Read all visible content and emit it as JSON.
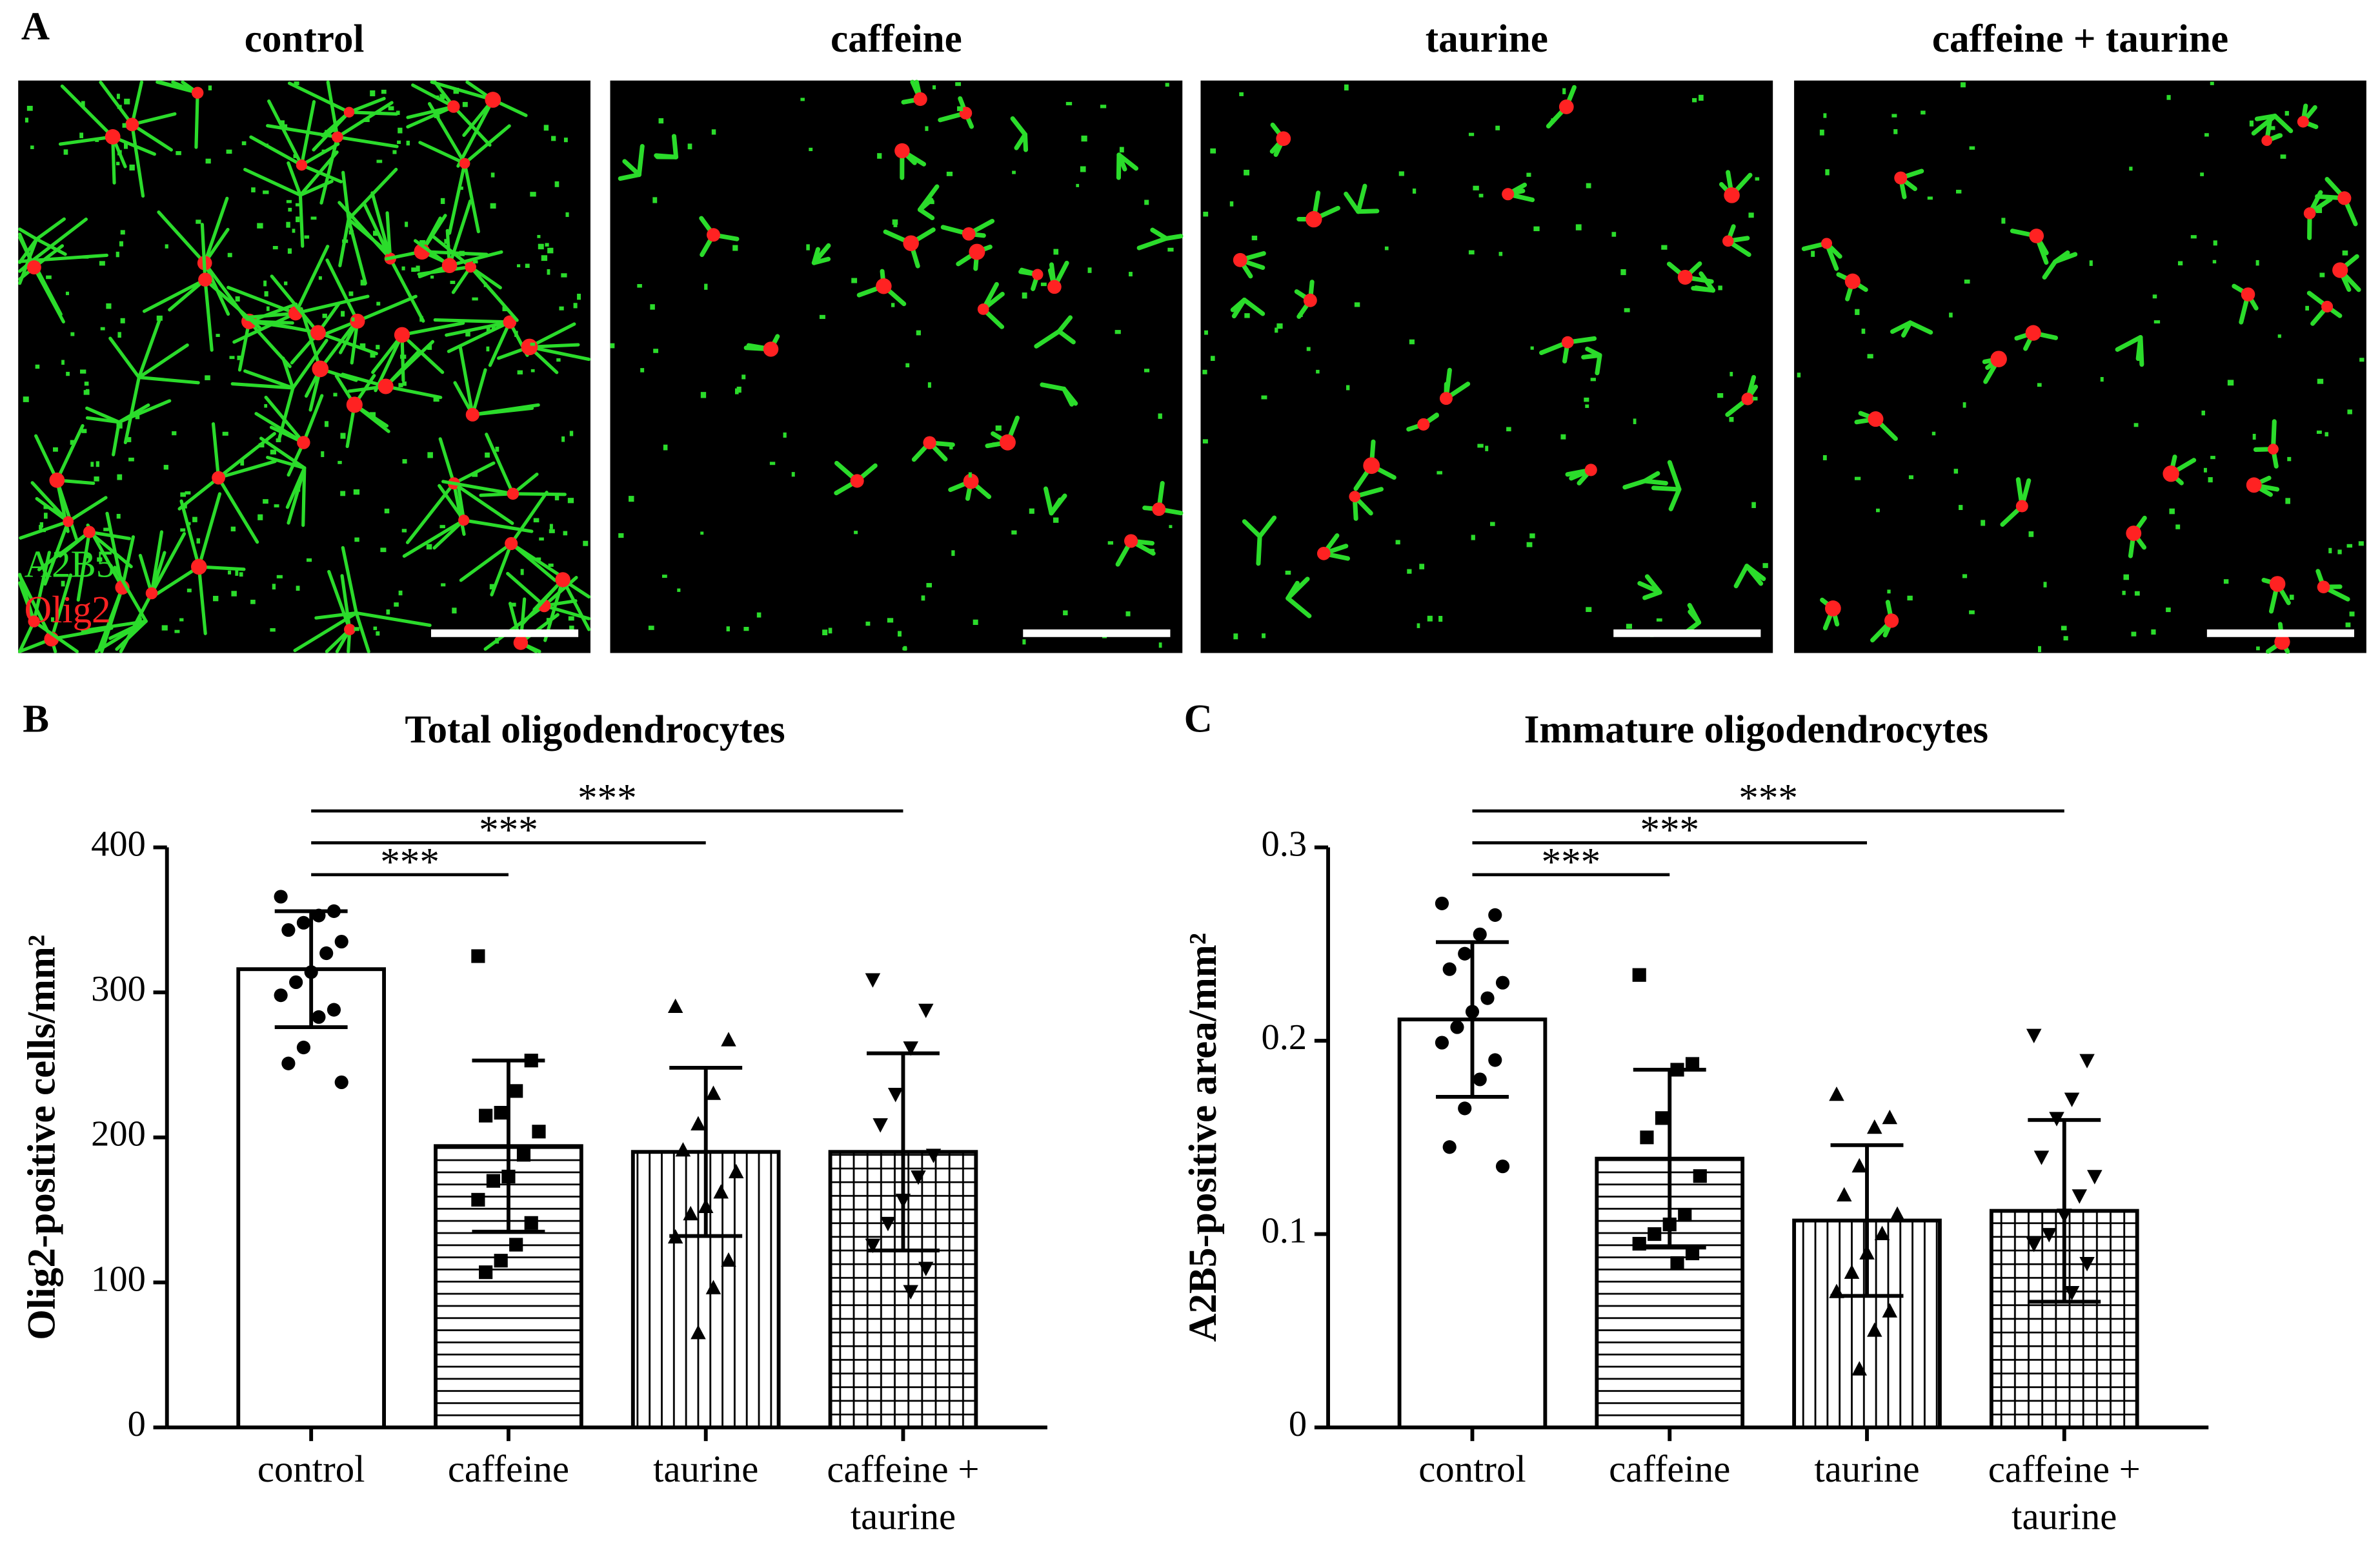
{
  "figure": {
    "panel_label": "A",
    "titles": [
      "control",
      "caffeine",
      "taurine",
      "caffeine + taurine"
    ],
    "stains": [
      {
        "name": "A2B5",
        "color": "#2bdc2b"
      },
      {
        "name": "Olig2",
        "color": "#ff2222"
      }
    ]
  },
  "chart_data": [
    {
      "type": "bar",
      "panel_label": "B",
      "title": "Total oligodendrocytes",
      "ylabel": "Olig2-positive cells/mm²",
      "categories": [
        "control",
        "caffeine",
        "taurine",
        "caffeine + taurine"
      ],
      "values": [
        316,
        194,
        190,
        190
      ],
      "errors": [
        40,
        59,
        58,
        68
      ],
      "points": [
        [
          366,
          356,
          353,
          348,
          343,
          335,
          327,
          314,
          307,
          298,
          288,
          283,
          262,
          251,
          238
        ],
        [
          325,
          253,
          232,
          217,
          215,
          204,
          188,
          173,
          170,
          157,
          141,
          126,
          115,
          107
        ],
        [
          290,
          267,
          230,
          209,
          191,
          176,
          162,
          152,
          147,
          131,
          115,
          96,
          65
        ],
        [
          309,
          288,
          262,
          230,
          209,
          188,
          173,
          157,
          141,
          126,
          110,
          94
        ]
      ],
      "markers": [
        "circle",
        "square",
        "triangle",
        "triangle-down"
      ],
      "patterns": [
        "none",
        "horizontal",
        "vertical",
        "grid"
      ],
      "ylim": [
        0,
        400
      ],
      "yticks": [
        0,
        100,
        200,
        300,
        400
      ],
      "comparisons": [
        {
          "groups": [
            "control",
            "caffeine"
          ],
          "label": "***"
        },
        {
          "groups": [
            "control",
            "taurine"
          ],
          "label": "***"
        },
        {
          "groups": [
            "control",
            "caffeine + taurine"
          ],
          "label": "***"
        }
      ]
    },
    {
      "type": "bar",
      "panel_label": "C",
      "title": "Immature oligodendrocytes",
      "ylabel": "A2B5-positive area/mm²",
      "categories": [
        "control",
        "caffeine",
        "taurine",
        "caffeine + taurine"
      ],
      "values": [
        0.211,
        0.139,
        0.107,
        0.112
      ],
      "errors": [
        0.04,
        0.046,
        0.039,
        0.047
      ],
      "points": [
        [
          0.271,
          0.265,
          0.255,
          0.245,
          0.237,
          0.23,
          0.222,
          0.215,
          0.207,
          0.199,
          0.19,
          0.18,
          0.165,
          0.145,
          0.135
        ],
        [
          0.234,
          0.188,
          0.185,
          0.16,
          0.15,
          0.13,
          0.11,
          0.105,
          0.1,
          0.095,
          0.09,
          0.085
        ],
        [
          0.172,
          0.16,
          0.155,
          0.135,
          0.12,
          0.11,
          0.1,
          0.09,
          0.08,
          0.07,
          0.06,
          0.05,
          0.03
        ],
        [
          0.203,
          0.19,
          0.17,
          0.16,
          0.14,
          0.13,
          0.12,
          0.11,
          0.1,
          0.095,
          0.085,
          0.07
        ]
      ],
      "markers": [
        "circle",
        "square",
        "triangle",
        "triangle-down"
      ],
      "patterns": [
        "none",
        "horizontal",
        "vertical",
        "grid"
      ],
      "ylim": [
        0,
        0.3
      ],
      "yticks": [
        0,
        0.1,
        0.2,
        0.3
      ],
      "comparisons": [
        {
          "groups": [
            "control",
            "caffeine"
          ],
          "label": "***"
        },
        {
          "groups": [
            "control",
            "taurine"
          ],
          "label": "***"
        },
        {
          "groups": [
            "control",
            "caffeine + taurine"
          ],
          "label": "***"
        }
      ]
    }
  ]
}
